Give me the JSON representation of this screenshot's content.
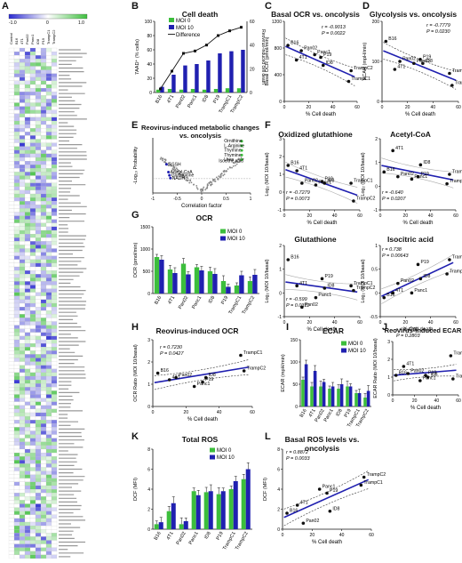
{
  "panels": {
    "A": {
      "label": "A",
      "legend": {
        "min": "-1.0",
        "mid": "0",
        "max": "1.0"
      },
      "columns": [
        "Control",
        "B16",
        "4T1",
        "Pan02",
        "Panc1",
        "ID8",
        "P19",
        "TrampC1",
        "TrampC2"
      ]
    },
    "B": {
      "label": "B",
      "title": "Cell death",
      "ylabel": "7AAD⁺ (% cells)",
      "y2label": "Reovirus-induced cell death",
      "legend": [
        "MOI 0",
        "MOI 10",
        "Difference"
      ]
    },
    "C": {
      "label": "C",
      "title": "Basal OCR vs. oncolysis",
      "ylabel": "Basal OCR (pmol/min)",
      "xlabel": "% Cell death",
      "r": "r = -0.9013",
      "p": "P = 0.0022"
    },
    "D": {
      "label": "D",
      "title": "Glycolysis vs. oncolysis",
      "ylabel": "ECAR (mpH/min)",
      "xlabel": "% Cell death",
      "r": "r = -0.7779",
      "p": "P = 0.0230"
    },
    "E": {
      "label": "E",
      "title": "Reovirus-induced metabolic changes vs. oncolysis",
      "ylabel": "-Log₁₀ Probability",
      "xlabel": "Correlation factor",
      "left_labels": [
        "GSSH",
        "Acetyl-CoA",
        "Glutathione",
        "NADH"
      ],
      "right_labels": [
        "Ornithine",
        "L-Arginine",
        "Thymine",
        "Thymine",
        "Urea"
      ],
      "mid_label": "Isocitric acid"
    },
    "F": {
      "label": "F",
      "subs": [
        {
          "title": "Oxidized glutathione",
          "r": "r = -0.7279",
          "p": "P = 0.0073"
        },
        {
          "title": "Acetyl-CoA",
          "r": "r = -0.640",
          "p": "P = 0.0207"
        },
        {
          "title": "Glutathione",
          "r": "r = -0.599",
          "p": "P = 0.0311"
        },
        {
          "title": "Isocitric acid",
          "r": "r = 0.738",
          "p": "P = 0.00643"
        }
      ],
      "ylabel": "Log₂ (MOI 10/basal)",
      "xlabel": "% Cell death"
    },
    "G": {
      "label": "G",
      "title": "OCR",
      "ylabel": "OCR (pmol/min)",
      "legend": [
        "MOI 0",
        "MOI 10"
      ]
    },
    "H": {
      "label": "H",
      "title": "Reovirus-induced OCR",
      "ylabel": "OCR Ratio (MOI 10/basal)",
      "xlabel": "% Cell death",
      "r": "r = 0.7230",
      "p": "P = 0.0427"
    },
    "I": {
      "label": "I",
      "title": "ECAR",
      "ylabel": "ECAR (mpH/min)",
      "legend": [
        "MOI 0",
        "MOI 10"
      ]
    },
    "J": {
      "label": "J",
      "title": "Reovirus-induced ECAR",
      "ylabel": "ECAR Ratio (MOI 10/basal)",
      "xlabel": "% Cell death",
      "r": "r = 0.4359",
      "p": "P = 0.2803"
    },
    "K": {
      "label": "K",
      "title": "Total ROS",
      "ylabel": "DCF (MFI)",
      "legend": [
        "MOI 0",
        "MOI 10"
      ]
    },
    "L": {
      "label": "L",
      "title": "Basal ROS levels vs. oncolysis",
      "ylabel": "DCF (MFI)",
      "xlabel": "% Cell death",
      "r": "r = 0.8872",
      "p": "P = 0.0033"
    }
  },
  "colors": {
    "green": "#3cbe3c",
    "blue": "#2020b0",
    "black": "#111111",
    "heat_pos": "#3fbf3f",
    "heat_neg": "#2a2ad0"
  },
  "chart_data": [
    {
      "id": "B",
      "type": "bar",
      "categories": [
        "B16",
        "4T1",
        "Pan02",
        "Panc1",
        "ID8",
        "P19",
        "TrampC1",
        "TrampC2"
      ],
      "series": [
        {
          "name": "MOI 0",
          "values": [
            4,
            5,
            4,
            5,
            4,
            5,
            6,
            6
          ]
        },
        {
          "name": "MOI 10",
          "values": [
            8,
            25,
            38,
            40,
            45,
            55,
            58,
            60
          ]
        },
        {
          "name": "Difference",
          "values": [
            3,
            18,
            33,
            35,
            40,
            48,
            52,
            55
          ]
        }
      ],
      "ylim": [
        0,
        100
      ],
      "y2lim": [
        0,
        60
      ]
    },
    {
      "id": "C",
      "type": "scatter",
      "labels": [
        "B16",
        "Pan02",
        "Panc1",
        "P19",
        "4T1",
        "ID8",
        "TrampC2",
        "TrampC1"
      ],
      "x": [
        3,
        14,
        25,
        30,
        10,
        32,
        55,
        53
      ],
      "y": [
        840,
        760,
        700,
        660,
        620,
        540,
        460,
        300
      ],
      "xlim": [
        0,
        60
      ],
      "ylim": [
        0,
        1200
      ]
    },
    {
      "id": "D",
      "type": "scatter",
      "labels": [
        "B16",
        "P19",
        "ID8",
        "Pan02",
        "Panc1",
        "4T1",
        "TrampC1",
        "TrampC2"
      ],
      "x": [
        3,
        30,
        32,
        14,
        25,
        10,
        53,
        55
      ],
      "y": [
        150,
        105,
        95,
        100,
        95,
        80,
        70,
        40
      ],
      "xlim": [
        0,
        60
      ],
      "ylim": [
        0,
        200
      ]
    },
    {
      "id": "E",
      "type": "scatter",
      "xlim": [
        -1,
        1
      ],
      "ylim": [
        0,
        5
      ]
    },
    {
      "id": "F1",
      "type": "scatter",
      "labels": [
        "B16",
        "4T1",
        "ID8",
        "Pan02",
        "Panc1",
        "P19",
        "TrampC1",
        "TrampC2"
      ],
      "x": [
        3,
        10,
        32,
        14,
        25,
        30,
        53,
        55
      ],
      "y": [
        1.5,
        1.2,
        0.5,
        0.5,
        0.4,
        0.6,
        0.5,
        -0.5
      ],
      "xlim": [
        0,
        60
      ],
      "ylim": [
        -1,
        3
      ]
    },
    {
      "id": "F2",
      "type": "scatter",
      "labels": [
        "4T1",
        "ID8",
        "B16",
        "Pan02",
        "Panc1",
        "P19",
        "TrampC2",
        "TrampC1"
      ],
      "x": [
        10,
        32,
        3,
        14,
        25,
        30,
        55,
        53
      ],
      "y": [
        1.5,
        0.9,
        0.6,
        0.4,
        0.3,
        0.4,
        0.5,
        0.1
      ],
      "xlim": [
        0,
        60
      ],
      "ylim": [
        -1,
        2
      ]
    },
    {
      "id": "F3",
      "type": "scatter",
      "labels": [
        "B16",
        "P19",
        "4T1",
        "ID8",
        "Pan02",
        "Panc1",
        "TrampC1",
        "TrampC2"
      ],
      "x": [
        3,
        30,
        10,
        32,
        14,
        25,
        53,
        55
      ],
      "y": [
        1.4,
        0.6,
        0.3,
        0.2,
        -0.6,
        -0.2,
        0.3,
        0.1
      ],
      "xlim": [
        0,
        60
      ],
      "ylim": [
        -1,
        2
      ]
    },
    {
      "id": "F4",
      "type": "scatter",
      "labels": [
        "P19",
        "TrampC2",
        "ID8",
        "Pan02",
        "TrampC1",
        "4T1",
        "B16",
        "Panc1"
      ],
      "x": [
        30,
        55,
        32,
        14,
        53,
        10,
        3,
        25
      ],
      "y": [
        0.6,
        0.7,
        0.3,
        0.2,
        0.4,
        0.0,
        -0.1,
        0.0
      ],
      "xlim": [
        0,
        60
      ],
      "ylim": [
        -0.5,
        1
      ]
    },
    {
      "id": "G",
      "type": "bar",
      "categories": [
        "B16",
        "4T1",
        "Pan02",
        "Panc1",
        "ID8",
        "P19",
        "TrampC1",
        "TrampC2"
      ],
      "series": [
        {
          "name": "MOI 0",
          "values": [
            820,
            540,
            670,
            590,
            500,
            280,
            180,
            280
          ]
        },
        {
          "name": "MOI 10",
          "values": [
            760,
            460,
            430,
            520,
            440,
            150,
            410,
            420
          ]
        }
      ],
      "ylim": [
        0,
        1500
      ]
    },
    {
      "id": "H",
      "type": "scatter",
      "labels": [
        "B16",
        "Pan02",
        "4T1",
        "ID8",
        "P19",
        "Panc1",
        "TrampC1",
        "TrampC2"
      ],
      "x": [
        3,
        14,
        10,
        32,
        30,
        25,
        53,
        55
      ],
      "y": [
        1.5,
        1.3,
        1.2,
        1.3,
        1.1,
        0.9,
        2.3,
        1.6
      ],
      "xlim": [
        0,
        60
      ],
      "ylim": [
        0,
        3
      ]
    },
    {
      "id": "I",
      "type": "bar",
      "categories": [
        "B16",
        "4T1",
        "Pan02",
        "Panc1",
        "ID8",
        "P19",
        "TrampC1",
        "TrampC2"
      ],
      "series": [
        {
          "name": "MOI 0",
          "values": [
            60,
            45,
            45,
            40,
            40,
            45,
            30,
            20
          ]
        },
        {
          "name": "MOI 10",
          "values": [
            95,
            80,
            55,
            45,
            50,
            45,
            30,
            35
          ]
        }
      ],
      "ylim": [
        0,
        150
      ]
    },
    {
      "id": "J",
      "type": "scatter",
      "labels": [
        "TrampC1",
        "4T1",
        "Pan02",
        "P19",
        "B16",
        "ID8",
        "TrampC2",
        "Panc1"
      ],
      "x": [
        53,
        10,
        14,
        30,
        3,
        32,
        55,
        25
      ],
      "y": [
        2.2,
        1.6,
        1.2,
        1.1,
        1.1,
        1.0,
        0.9,
        0.8
      ],
      "xlim": [
        0,
        60
      ],
      "ylim": [
        0,
        3
      ]
    },
    {
      "id": "K",
      "type": "bar",
      "categories": [
        "B16",
        "4T1",
        "Pan02",
        "Panc1",
        "ID8",
        "P19",
        "TrampC1",
        "TrampC2"
      ],
      "series": [
        {
          "name": "MOI 0",
          "values": [
            0.5,
            1.8,
            0.5,
            3.8,
            3.7,
            3.5,
            4.0,
            5.0
          ]
        },
        {
          "name": "MOI 10",
          "values": [
            0.7,
            2.6,
            0.8,
            3.4,
            3.8,
            3.8,
            4.8,
            6.0
          ]
        }
      ],
      "ylim": [
        0,
        8
      ]
    },
    {
      "id": "L",
      "type": "scatter",
      "labels": [
        "TrampC2",
        "TrampC1",
        "Panc1",
        "P19",
        "4T1",
        "B16",
        "ID8",
        "Pan02"
      ],
      "x": [
        55,
        53,
        25,
        30,
        10,
        3,
        32,
        14
      ],
      "y": [
        5.2,
        4.4,
        4.0,
        3.6,
        2.4,
        1.6,
        1.8,
        0.6
      ],
      "xlim": [
        0,
        60
      ],
      "ylim": [
        0,
        8
      ]
    }
  ]
}
